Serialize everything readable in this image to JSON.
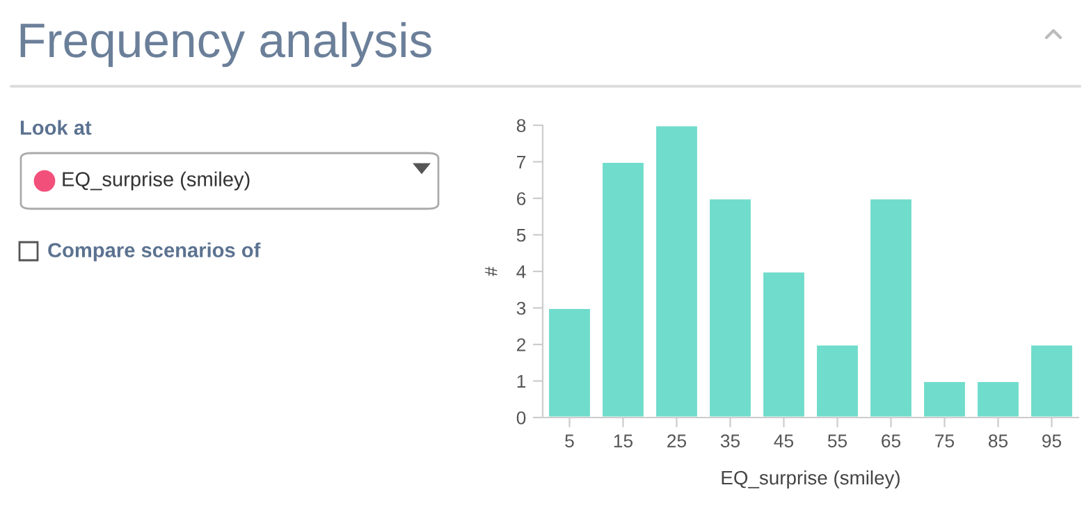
{
  "chart_data": {
    "type": "bar",
    "title": "Frequency analysis",
    "annotations": [
      "Look at",
      "EQ_surprise (smiley)",
      "Compare scenarios of"
    ],
    "categories": [
      "5",
      "15",
      "25",
      "35",
      "45",
      "55",
      "65",
      "75",
      "85",
      "95"
    ],
    "values": [
      3,
      7,
      8,
      6,
      4,
      2,
      6,
      1,
      1,
      2
    ],
    "color": "#70dccb",
    "xlabel": "EQ_surprise (smiley)",
    "ylabel": "#",
    "ylim": [
      0,
      8
    ],
    "yticks": [
      0,
      1,
      2,
      3,
      4,
      5,
      6,
      7,
      8
    ],
    "grid": false
  }
}
